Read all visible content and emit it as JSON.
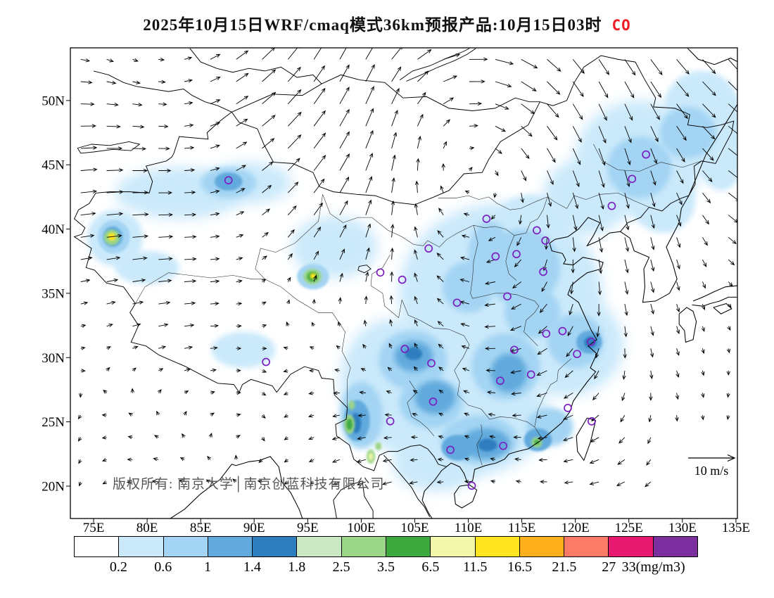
{
  "title": {
    "text": "2025年10月15日WRF/cmaq模式36km预报产品:10月15日03时",
    "species": "CO",
    "species_color": "#ee1c25"
  },
  "map": {
    "copyright": "版权所有: 南京大学│南京创蓝科技有限公司",
    "wind_legend_label": "10 m/s"
  },
  "chart_data": {
    "type": "map-contour",
    "variable": "CO",
    "units": "mg/m3",
    "model": "WRF/cmaq 36km",
    "valid_time": "10月15日03时",
    "lon_range": [
      72.83,
      135.14
    ],
    "lat_range": [
      17.48,
      54.1
    ],
    "lon_ticks": [
      "75E",
      "80E",
      "85E",
      "90E",
      "95E",
      "100E",
      "105E",
      "110E",
      "115E",
      "120E",
      "125E",
      "130E",
      "135E"
    ],
    "lat_ticks": [
      "20N",
      "25N",
      "30N",
      "35N",
      "40N",
      "45N",
      "50N"
    ],
    "colorbar": {
      "labels": [
        "0.2",
        "0.6",
        "1",
        "1.4",
        "1.8",
        "2.5",
        "3.5",
        "6.5",
        "11.5",
        "16.5",
        "21.5",
        "27",
        "33(mg/m3)"
      ],
      "colors": [
        "#FFFFFF",
        "#CAE9FB",
        "#A3D4F3",
        "#62AADD",
        "#2E7EBF",
        "#CBE8C4",
        "#9BD689",
        "#3EA93E",
        "#F3F7AA",
        "#FFE51F",
        "#FFB01C",
        "#FB7B66",
        "#E6196E",
        "#7D2FA0"
      ]
    },
    "station_color": "#7B1FC1",
    "stations_lonlat": [
      [
        87.6,
        43.8
      ],
      [
        126.6,
        45.8
      ],
      [
        125.3,
        43.9
      ],
      [
        123.4,
        41.8
      ],
      [
        111.7,
        40.8
      ],
      [
        116.4,
        39.9
      ],
      [
        117.2,
        39.1
      ],
      [
        114.5,
        38.05
      ],
      [
        112.55,
        37.87
      ],
      [
        117.0,
        36.67
      ],
      [
        106.3,
        38.49
      ],
      [
        101.78,
        36.62
      ],
      [
        103.83,
        36.06
      ],
      [
        108.95,
        34.27
      ],
      [
        113.65,
        34.76
      ],
      [
        117.28,
        31.86
      ],
      [
        118.8,
        32.06
      ],
      [
        121.47,
        31.23
      ],
      [
        120.16,
        30.28
      ],
      [
        114.3,
        30.6
      ],
      [
        104.07,
        30.67
      ],
      [
        106.55,
        29.56
      ],
      [
        91.11,
        29.66
      ],
      [
        106.71,
        26.57
      ],
      [
        102.71,
        25.05
      ],
      [
        112.98,
        28.2
      ],
      [
        115.86,
        28.68
      ],
      [
        119.3,
        26.08
      ],
      [
        121.52,
        25.04
      ],
      [
        113.26,
        23.13
      ],
      [
        108.33,
        22.82
      ],
      [
        110.33,
        20.03
      ]
    ],
    "field_blobs": [
      [
        126,
        45.5,
        6,
        4.5,
        1
      ],
      [
        131.8,
        49.5,
        3.5,
        2.8,
        1
      ],
      [
        113,
        35,
        9.5,
        7,
        1
      ],
      [
        109.5,
        25.5,
        8,
        4.8,
        1
      ],
      [
        119,
        31,
        5.5,
        4,
        1
      ],
      [
        103,
        28,
        5,
        5,
        1
      ],
      [
        83,
        42.8,
        6,
        2,
        1
      ],
      [
        89.5,
        43.6,
        4,
        1.6,
        1
      ],
      [
        77,
        39.3,
        2.6,
        2.2,
        1
      ],
      [
        97.5,
        38.6,
        4,
        2.4,
        1
      ],
      [
        107,
        21.6,
        4,
        2,
        1
      ],
      [
        133.6,
        46.5,
        2.5,
        3.5,
        1
      ],
      [
        89,
        30.6,
        3,
        1.4,
        1
      ],
      [
        80,
        37,
        3,
        1.3,
        1
      ],
      [
        121,
        42.5,
        4,
        3,
        1
      ],
      [
        128.2,
        42.2,
        3,
        2.5,
        1
      ],
      [
        116,
        40.5,
        3.5,
        2.2,
        1
      ],
      [
        104.8,
        29.8,
        3.2,
        2.3,
        2
      ],
      [
        106.5,
        26.5,
        3,
        2,
        2
      ],
      [
        111,
        23.6,
        3.6,
        1.9,
        2
      ],
      [
        113.5,
        29.3,
        3.2,
        2.6,
        2
      ],
      [
        120,
        31.3,
        2.6,
        2.1,
        2
      ],
      [
        115,
        37,
        3.6,
        3,
        2
      ],
      [
        112,
        38,
        2,
        2.6,
        2
      ],
      [
        126,
        44.8,
        3,
        2.4,
        2
      ],
      [
        130.5,
        47.5,
        2.6,
        2,
        2
      ],
      [
        87.6,
        43.6,
        2.6,
        1.2,
        2
      ],
      [
        76.9,
        39.4,
        1.5,
        1.3,
        2
      ],
      [
        95.5,
        36.3,
        1.5,
        1,
        2
      ],
      [
        100,
        25.5,
        2,
        2.6,
        2
      ],
      [
        117.6,
        24.6,
        2.2,
        1.5,
        2
      ],
      [
        110,
        35.5,
        2.4,
        2,
        2
      ],
      [
        116,
        33.5,
        2.6,
        2,
        2
      ],
      [
        104.9,
        30.1,
        1.8,
        1.2,
        3
      ],
      [
        106.9,
        26.9,
        1.9,
        1.3,
        3
      ],
      [
        111.6,
        23.3,
        2.3,
        1.2,
        3
      ],
      [
        113.8,
        28.8,
        1.7,
        1.5,
        3
      ],
      [
        121.3,
        31.2,
        1.2,
        0.9,
        3
      ],
      [
        99.6,
        25.1,
        1.2,
        1.6,
        3
      ],
      [
        87.6,
        43.7,
        1.3,
        0.7,
        3
      ],
      [
        76.8,
        39.4,
        0.9,
        0.8,
        3
      ],
      [
        116.5,
        23.6,
        1.3,
        0.9,
        3
      ],
      [
        109,
        23,
        1.5,
        1,
        3
      ],
      [
        121.4,
        31.2,
        0.6,
        0.45,
        4
      ],
      [
        104.9,
        30.3,
        0.8,
        0.5,
        4
      ],
      [
        99.5,
        24.9,
        0.5,
        0.8,
        4
      ],
      [
        111.8,
        23.2,
        0.9,
        0.5,
        4
      ],
      [
        76.7,
        39.35,
        0.75,
        0.6,
        6
      ],
      [
        76.7,
        39.4,
        0.35,
        0.3,
        9
      ],
      [
        95.45,
        36.3,
        0.85,
        0.6,
        6
      ],
      [
        95.45,
        36.3,
        0.5,
        0.38,
        7
      ],
      [
        95.5,
        36.35,
        0.28,
        0.22,
        9
      ],
      [
        98.9,
        24.8,
        0.5,
        0.75,
        6
      ],
      [
        98.9,
        24.8,
        0.28,
        0.45,
        7
      ],
      [
        99.1,
        26.3,
        0.3,
        0.35,
        6
      ],
      [
        100.9,
        22.3,
        0.4,
        0.55,
        6
      ],
      [
        100.9,
        22.3,
        0.2,
        0.3,
        8
      ],
      [
        101.6,
        23.1,
        0.3,
        0.3,
        6
      ],
      [
        116.4,
        23.4,
        0.5,
        0.4,
        6
      ],
      [
        116.4,
        23.4,
        0.25,
        0.2,
        7
      ]
    ]
  }
}
